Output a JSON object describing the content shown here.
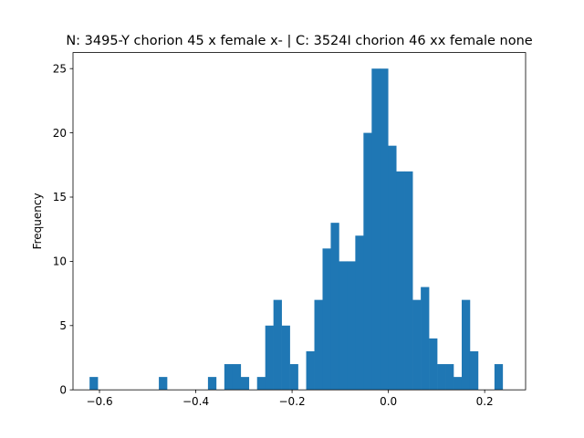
{
  "chart_data": {
    "type": "bar",
    "title": "N: 3495-Y chorion 45 x female x- | C: 3524I chorion 46 xx female none",
    "xlabel": "",
    "ylabel": "Frequency",
    "xlim": [
      -0.655,
      0.285
    ],
    "ylim": [
      0,
      26.25
    ],
    "xticks": [
      -0.6,
      -0.4,
      -0.2,
      0.0,
      0.2
    ],
    "xtick_labels": [
      "−0.6",
      "−0.4",
      "−0.2",
      "0.0",
      "0.2"
    ],
    "yticks": [
      0,
      5,
      10,
      15,
      20,
      25
    ],
    "ytick_labels": [
      "0",
      "5",
      "10",
      "15",
      "20",
      "25"
    ],
    "grid": false,
    "bar_color": "#1f77b4",
    "bins": [
      {
        "x0": -0.6206,
        "x1": -0.6036,
        "count": 1
      },
      {
        "x0": -0.4767,
        "x1": -0.4597,
        "count": 1
      },
      {
        "x0": -0.3747,
        "x1": -0.3577,
        "count": 1
      },
      {
        "x0": -0.3407,
        "x1": -0.3237,
        "count": 2
      },
      {
        "x0": -0.3237,
        "x1": -0.3067,
        "count": 2
      },
      {
        "x0": -0.3067,
        "x1": -0.2897,
        "count": 1
      },
      {
        "x0": -0.2727,
        "x1": -0.2557,
        "count": 1
      },
      {
        "x0": -0.2557,
        "x1": -0.2387,
        "count": 5
      },
      {
        "x0": -0.2387,
        "x1": -0.2217,
        "count": 7
      },
      {
        "x0": -0.2217,
        "x1": -0.2047,
        "count": 5
      },
      {
        "x0": -0.2047,
        "x1": -0.1877,
        "count": 2
      },
      {
        "x0": -0.1707,
        "x1": -0.1537,
        "count": 3
      },
      {
        "x0": -0.1537,
        "x1": -0.1367,
        "count": 7
      },
      {
        "x0": -0.1367,
        "x1": -0.1197,
        "count": 11
      },
      {
        "x0": -0.1197,
        "x1": -0.1027,
        "count": 13
      },
      {
        "x0": -0.1027,
        "x1": -0.0857,
        "count": 10
      },
      {
        "x0": -0.0857,
        "x1": -0.0687,
        "count": 10
      },
      {
        "x0": -0.0687,
        "x1": -0.0517,
        "count": 12
      },
      {
        "x0": -0.0517,
        "x1": -0.0347,
        "count": 20
      },
      {
        "x0": -0.0347,
        "x1": -0.0177,
        "count": 25
      },
      {
        "x0": -0.0177,
        "x1": -0.0007,
        "count": 25
      },
      {
        "x0": -0.0007,
        "x1": 0.0163,
        "count": 19
      },
      {
        "x0": 0.0163,
        "x1": 0.0333,
        "count": 17
      },
      {
        "x0": 0.0333,
        "x1": 0.0503,
        "count": 17
      },
      {
        "x0": 0.0503,
        "x1": 0.0673,
        "count": 7
      },
      {
        "x0": 0.0673,
        "x1": 0.0843,
        "count": 8
      },
      {
        "x0": 0.0843,
        "x1": 0.1013,
        "count": 4
      },
      {
        "x0": 0.1013,
        "x1": 0.1183,
        "count": 2
      },
      {
        "x0": 0.1183,
        "x1": 0.1353,
        "count": 2
      },
      {
        "x0": 0.1353,
        "x1": 0.1523,
        "count": 1
      },
      {
        "x0": 0.1523,
        "x1": 0.1693,
        "count": 7
      },
      {
        "x0": 0.1693,
        "x1": 0.1863,
        "count": 3
      },
      {
        "x0": 0.2203,
        "x1": 0.2373,
        "count": 2
      }
    ]
  }
}
